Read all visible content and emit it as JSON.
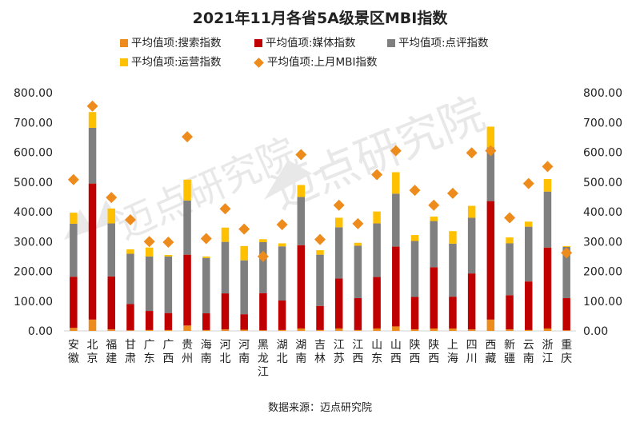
{
  "chart_data": {
    "type": "bar",
    "title": "2021年11月各省5A级景区MBI指数",
    "categories": [
      "安徽",
      "北京",
      "福建",
      "甘肃",
      "广东",
      "广西",
      "贵州",
      "海南",
      "河北",
      "河南",
      "黑龙江",
      "湖北",
      "湖南",
      "吉林",
      "江苏",
      "江西",
      "山东",
      "山西",
      "陕西",
      "陕西",
      "上海",
      "四川",
      "西藏",
      "新疆",
      "云南",
      "浙江",
      "重庆"
    ],
    "series": [
      {
        "name": "平均值项:搜索指数",
        "color": "#ED8B1C",
        "kind": "stacked-bar",
        "values": [
          10,
          38,
          5,
          2,
          3,
          3,
          18,
          3,
          5,
          4,
          2,
          3,
          8,
          3,
          8,
          3,
          8,
          15,
          5,
          8,
          8,
          5,
          38,
          5,
          3,
          8,
          2
        ]
      },
      {
        "name": "平均值项:媒体指数",
        "color": "#C00000",
        "kind": "stacked-bar",
        "values": [
          172,
          457,
          178,
          88,
          64,
          57,
          238,
          56,
          121,
          52,
          125,
          99,
          280,
          81,
          168,
          107,
          173,
          268,
          109,
          206,
          107,
          188,
          398,
          115,
          163,
          272,
          108
        ]
      },
      {
        "name": "平均值项:点评指数",
        "color": "#7F7F7F",
        "kind": "stacked-bar",
        "values": [
          178,
          187,
          178,
          169,
          183,
          190,
          182,
          186,
          173,
          181,
          171,
          182,
          162,
          172,
          172,
          176,
          180,
          178,
          188,
          155,
          178,
          187,
          180,
          174,
          184,
          188,
          172
        ]
      },
      {
        "name": "平均值项:运营指数",
        "color": "#FFC000",
        "kind": "stacked-bar",
        "values": [
          37,
          53,
          50,
          15,
          30,
          5,
          70,
          5,
          48,
          48,
          10,
          10,
          40,
          15,
          32,
          10,
          40,
          72,
          20,
          15,
          42,
          40,
          70,
          20,
          17,
          42,
          3
        ]
      },
      {
        "name": "平均值项:上月MBI指数",
        "color": "#ED8B1C",
        "kind": "diamond",
        "values": [
          508,
          755,
          448,
          373,
          300,
          298,
          652,
          310,
          410,
          342,
          250,
          357,
          592,
          307,
          422,
          360,
          525,
          605,
          472,
          422,
          462,
          598,
          605,
          380,
          495,
          552,
          262
        ]
      }
    ],
    "ylim": [
      0,
      800
    ],
    "yticks": [
      "0.00",
      "100.00",
      "200.00",
      "300.00",
      "400.00",
      "500.00",
      "600.00",
      "700.00",
      "800.00"
    ],
    "secondary_axis": true,
    "legend_position": "top",
    "grid": false
  },
  "watermark": "迈点研究院",
  "source_text": "数据来源：迈点研究院"
}
